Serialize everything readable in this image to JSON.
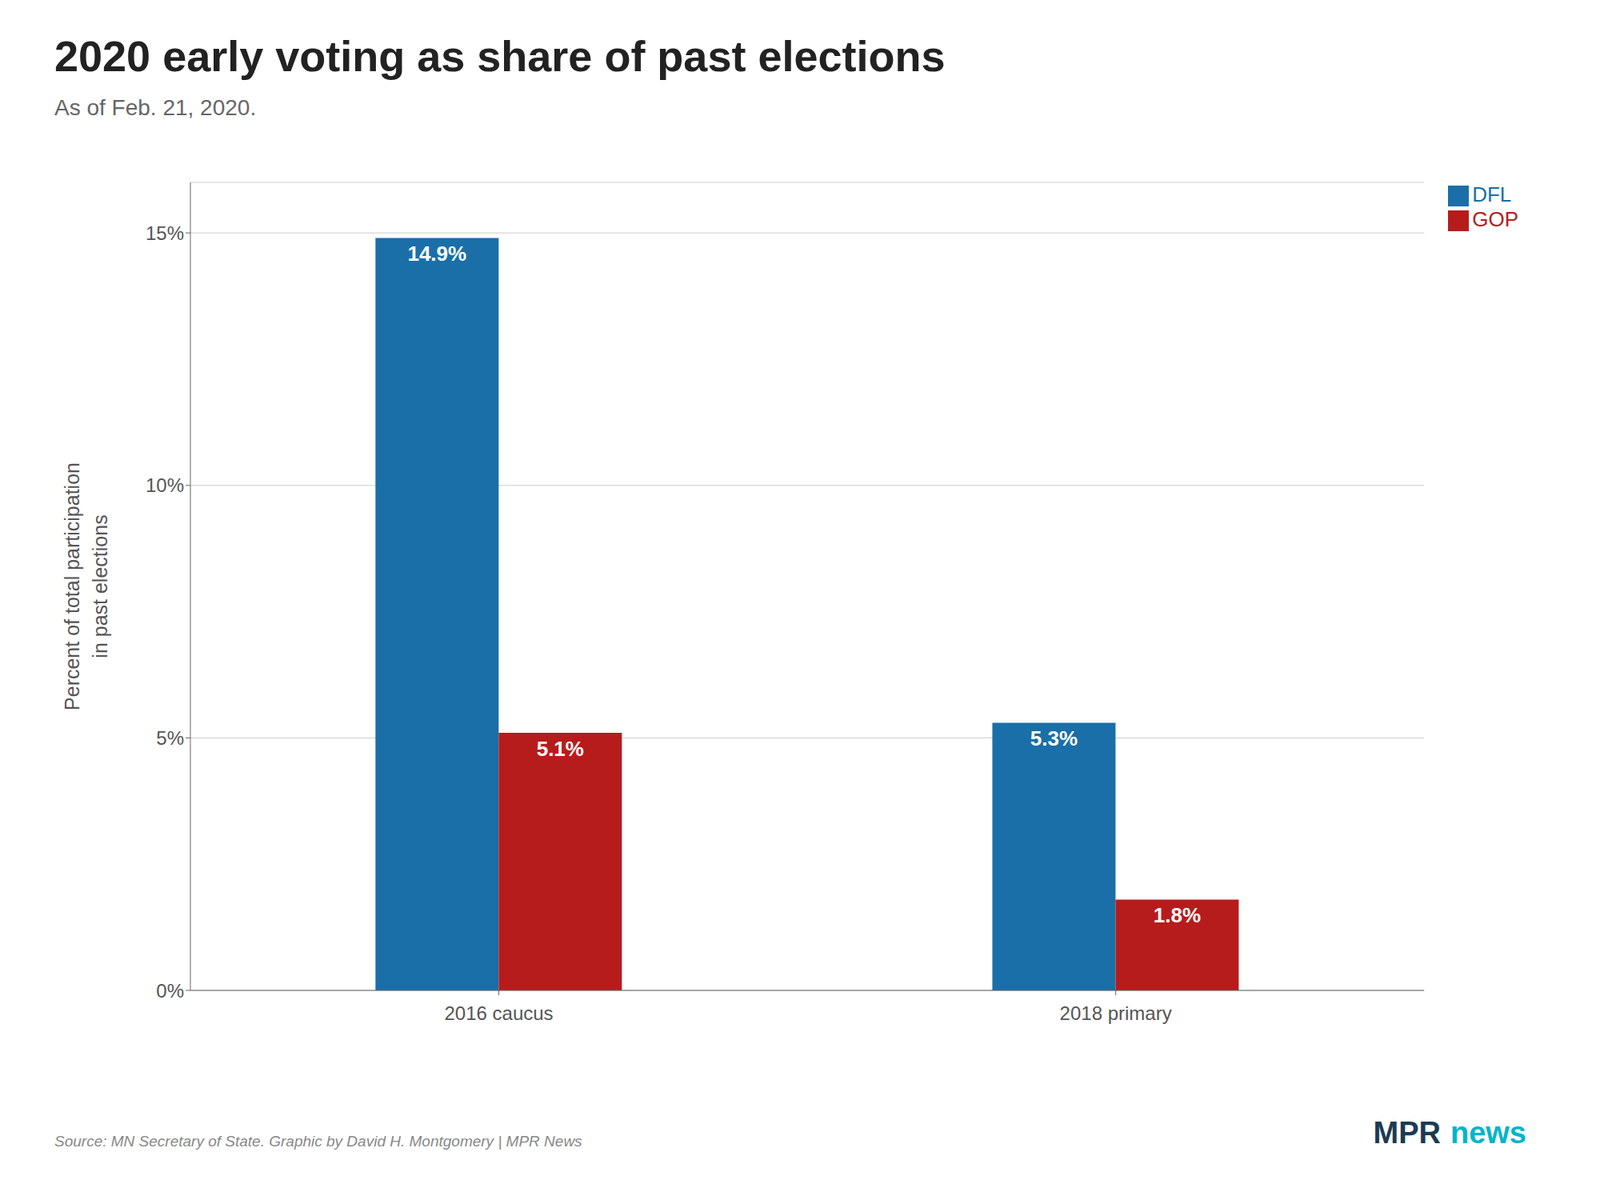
{
  "chart_data": {
    "type": "bar",
    "title": "2020 early voting as share of past elections",
    "subtitle": "As of Feb. 21, 2020.",
    "ylabel": "Percent of total participation\nin past elections",
    "categories": [
      "2016 caucus",
      "2018 primary"
    ],
    "series": [
      {
        "name": "DFL",
        "color": "#1a6fa8",
        "values": [
          14.9,
          5.3
        ],
        "value_labels": [
          "14.9%",
          "5.3%"
        ]
      },
      {
        "name": "GOP",
        "color": "#b71c1c",
        "values": [
          5.1,
          1.8
        ],
        "value_labels": [
          "5.1%",
          "1.8%"
        ]
      }
    ],
    "ylim": [
      0,
      16
    ],
    "yticks": [
      {
        "value": 0,
        "label": "0%"
      },
      {
        "value": 5,
        "label": "5%"
      },
      {
        "value": 10,
        "label": "10%"
      },
      {
        "value": 15,
        "label": "15%"
      }
    ],
    "grid": true,
    "legend": "upper right",
    "data_labels": true,
    "annotations": [
      {
        "text": "Source: MN Secretary of State. Graphic by David H. Montgomery | MPR News"
      },
      {
        "text": "MPR",
        "color": "#1c3a52"
      },
      {
        "text": "news",
        "color": "#00b5cc"
      }
    ]
  }
}
